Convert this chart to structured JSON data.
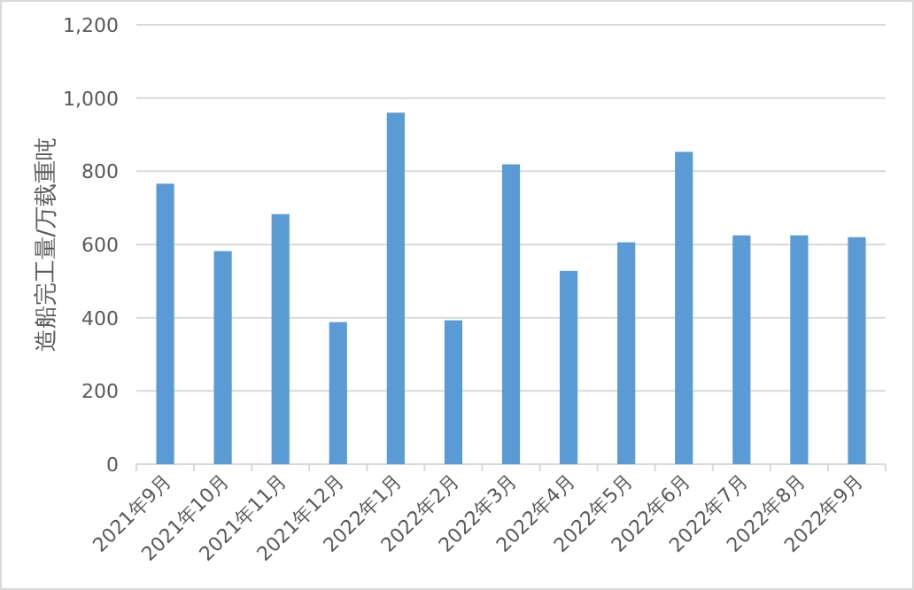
{
  "chart_data": {
    "type": "bar",
    "ylabel": "造船完工量/万载重吨",
    "categories": [
      "2021年9月",
      "2021年10月",
      "2021年11月",
      "2021年12月",
      "2022年1月",
      "2022年2月",
      "2022年3月",
      "2022年4月",
      "2022年5月",
      "2022年6月",
      "2022年7月",
      "2022年8月",
      "2022年9月"
    ],
    "values": [
      766,
      582,
      683,
      388,
      960,
      393,
      819,
      528,
      606,
      853,
      625,
      625,
      620
    ],
    "color": "#5b9bd5",
    "ylim": [
      0,
      1200
    ],
    "yticks": [
      {
        "value": 0,
        "label": "0"
      },
      {
        "value": 200,
        "label": "200"
      },
      {
        "value": 400,
        "label": "400"
      },
      {
        "value": 600,
        "label": "600"
      },
      {
        "value": 800,
        "label": "800"
      },
      {
        "value": 1000,
        "label": "1,000"
      },
      {
        "value": 1200,
        "label": "1,200"
      }
    ],
    "grid": "y"
  }
}
